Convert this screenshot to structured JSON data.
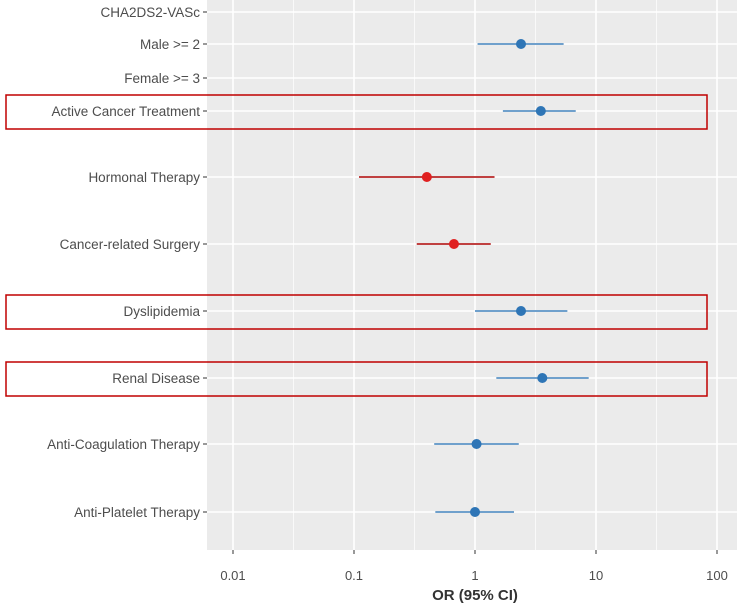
{
  "chart_data": {
    "type": "scatter",
    "subtype": "forest-plot",
    "title": "",
    "xlabel": "OR (95% CI)",
    "ylabel": "",
    "x_scale": "log",
    "xlim": [
      0.004,
      150
    ],
    "x_ticks": [
      {
        "value": 0.01,
        "label": "0.01"
      },
      {
        "value": 0.1,
        "label": "0.1"
      },
      {
        "value": 1,
        "label": "1"
      },
      {
        "value": 10,
        "label": "10"
      },
      {
        "value": 100,
        "label": "100"
      }
    ],
    "grid": true,
    "colors": {
      "panel_bg": "#ebebeb",
      "grid": "#ffffff",
      "blue": "#2e75b6",
      "blue_ci": "#6fa0cc",
      "red": "#e02020",
      "red_ci": "#c04040",
      "highlight_box": "#c00000"
    },
    "rows": [
      {
        "label": "CHA2DS2-VASc",
        "or": null,
        "lo": null,
        "hi": null,
        "color": null,
        "highlighted": false
      },
      {
        "label": "Male >= 2",
        "or": 2.4,
        "lo": 1.05,
        "hi": 5.4,
        "color": "blue",
        "highlighted": false
      },
      {
        "label": "Female >= 3",
        "or": null,
        "lo": null,
        "hi": null,
        "color": null,
        "highlighted": false
      },
      {
        "label": "Active Cancer Treatment",
        "or": 3.5,
        "lo": 1.7,
        "hi": 6.8,
        "color": "blue",
        "highlighted": true
      },
      {
        "label": "Hormonal Therapy",
        "or": 0.4,
        "lo": 0.11,
        "hi": 1.45,
        "color": "red",
        "highlighted": false
      },
      {
        "label": "Cancer-related Surgery",
        "or": 0.67,
        "lo": 0.33,
        "hi": 1.35,
        "color": "red",
        "highlighted": false
      },
      {
        "label": "Dyslipidemia",
        "or": 2.4,
        "lo": 1.0,
        "hi": 5.8,
        "color": "blue",
        "highlighted": true
      },
      {
        "label": "Renal Disease",
        "or": 3.6,
        "lo": 1.5,
        "hi": 8.7,
        "color": "blue",
        "highlighted": true
      },
      {
        "label": "Anti-Coagulation Therapy",
        "or": 1.03,
        "lo": 0.46,
        "hi": 2.3,
        "color": "blue",
        "highlighted": false
      },
      {
        "label": "Anti-Platelet Therapy",
        "or": 1.0,
        "lo": 0.47,
        "hi": 2.1,
        "color": "blue",
        "highlighted": false
      }
    ]
  }
}
